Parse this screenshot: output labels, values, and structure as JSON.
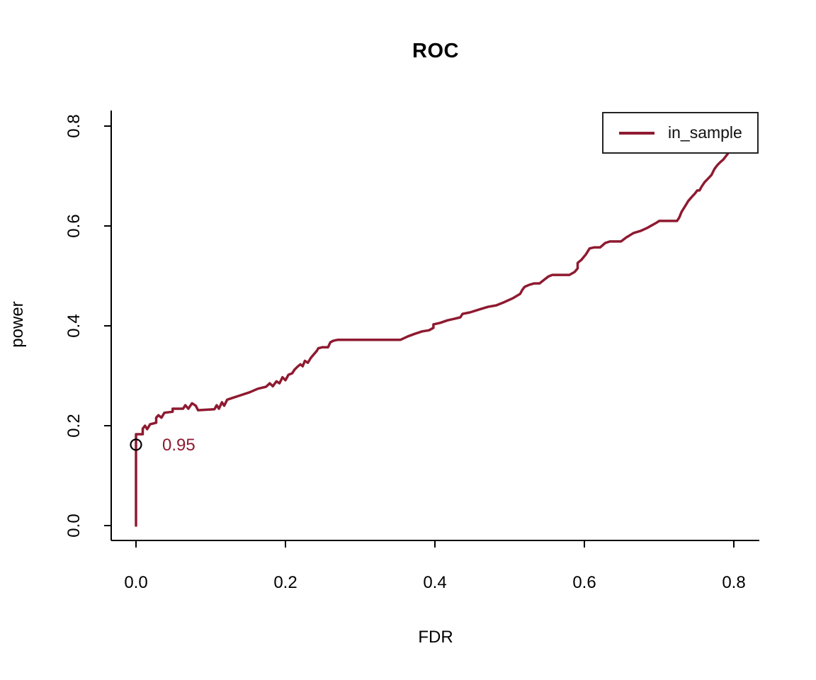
{
  "chart_data": {
    "type": "line",
    "title": "ROC",
    "xlabel": "FDR",
    "ylabel": "power",
    "xlim": [
      0,
      0.8
    ],
    "ylim": [
      0,
      0.8
    ],
    "grid": false,
    "x_ticks": [
      0.0,
      0.2,
      0.4,
      0.6,
      0.8
    ],
    "x_tick_labels": [
      "0.0",
      "0.2",
      "0.4",
      "0.6",
      "0.8"
    ],
    "y_ticks": [
      0.0,
      0.2,
      0.4,
      0.6,
      0.8
    ],
    "y_tick_labels": [
      "0.0",
      "0.2",
      "0.4",
      "0.6",
      "0.8"
    ],
    "legend_position": "top-right",
    "legend_entries": [
      {
        "label": "in_sample",
        "color": "#8E1A30"
      }
    ],
    "series": [
      {
        "name": "in_sample",
        "color": "#8E1A30",
        "points": [
          [
            0.0,
            0.0
          ],
          [
            0.0,
            0.183
          ],
          [
            0.009,
            0.183
          ],
          [
            0.009,
            0.194
          ],
          [
            0.012,
            0.2
          ],
          [
            0.015,
            0.193
          ],
          [
            0.019,
            0.203
          ],
          [
            0.027,
            0.206
          ],
          [
            0.027,
            0.216
          ],
          [
            0.03,
            0.221
          ],
          [
            0.034,
            0.216
          ],
          [
            0.038,
            0.226
          ],
          [
            0.049,
            0.228
          ],
          [
            0.049,
            0.234
          ],
          [
            0.063,
            0.234
          ],
          [
            0.066,
            0.241
          ],
          [
            0.07,
            0.234
          ],
          [
            0.075,
            0.245
          ],
          [
            0.08,
            0.24
          ],
          [
            0.083,
            0.231
          ],
          [
            0.105,
            0.233
          ],
          [
            0.108,
            0.241
          ],
          [
            0.111,
            0.234
          ],
          [
            0.115,
            0.247
          ],
          [
            0.118,
            0.24
          ],
          [
            0.122,
            0.252
          ],
          [
            0.128,
            0.255
          ],
          [
            0.14,
            0.261
          ],
          [
            0.152,
            0.267
          ],
          [
            0.163,
            0.274
          ],
          [
            0.174,
            0.278
          ],
          [
            0.179,
            0.285
          ],
          [
            0.183,
            0.279
          ],
          [
            0.188,
            0.289
          ],
          [
            0.192,
            0.285
          ],
          [
            0.196,
            0.297
          ],
          [
            0.2,
            0.291
          ],
          [
            0.204,
            0.302
          ],
          [
            0.209,
            0.305
          ],
          [
            0.212,
            0.312
          ],
          [
            0.216,
            0.318
          ],
          [
            0.22,
            0.323
          ],
          [
            0.223,
            0.319
          ],
          [
            0.226,
            0.33
          ],
          [
            0.23,
            0.326
          ],
          [
            0.234,
            0.336
          ],
          [
            0.238,
            0.343
          ],
          [
            0.242,
            0.35
          ],
          [
            0.244,
            0.355
          ],
          [
            0.249,
            0.357
          ],
          [
            0.257,
            0.357
          ],
          [
            0.26,
            0.367
          ],
          [
            0.264,
            0.37
          ],
          [
            0.27,
            0.372
          ],
          [
            0.354,
            0.372
          ],
          [
            0.364,
            0.379
          ],
          [
            0.373,
            0.384
          ],
          [
            0.383,
            0.389
          ],
          [
            0.392,
            0.391
          ],
          [
            0.398,
            0.396
          ],
          [
            0.398,
            0.403
          ],
          [
            0.407,
            0.406
          ],
          [
            0.417,
            0.411
          ],
          [
            0.426,
            0.414
          ],
          [
            0.434,
            0.417
          ],
          [
            0.437,
            0.424
          ],
          [
            0.447,
            0.427
          ],
          [
            0.46,
            0.433
          ],
          [
            0.471,
            0.438
          ],
          [
            0.482,
            0.441
          ],
          [
            0.492,
            0.447
          ],
          [
            0.504,
            0.455
          ],
          [
            0.514,
            0.464
          ],
          [
            0.517,
            0.472
          ],
          [
            0.52,
            0.478
          ],
          [
            0.526,
            0.482
          ],
          [
            0.533,
            0.485
          ],
          [
            0.54,
            0.485
          ],
          [
            0.546,
            0.492
          ],
          [
            0.552,
            0.499
          ],
          [
            0.557,
            0.502
          ],
          [
            0.58,
            0.502
          ],
          [
            0.587,
            0.508
          ],
          [
            0.591,
            0.515
          ],
          [
            0.591,
            0.526
          ],
          [
            0.596,
            0.532
          ],
          [
            0.602,
            0.543
          ],
          [
            0.607,
            0.555
          ],
          [
            0.613,
            0.557
          ],
          [
            0.621,
            0.557
          ],
          [
            0.628,
            0.566
          ],
          [
            0.634,
            0.569
          ],
          [
            0.649,
            0.569
          ],
          [
            0.656,
            0.577
          ],
          [
            0.666,
            0.586
          ],
          [
            0.675,
            0.59
          ],
          [
            0.684,
            0.596
          ],
          [
            0.697,
            0.607
          ],
          [
            0.7,
            0.61
          ],
          [
            0.724,
            0.61
          ],
          [
            0.727,
            0.617
          ],
          [
            0.73,
            0.628
          ],
          [
            0.735,
            0.64
          ],
          [
            0.739,
            0.65
          ],
          [
            0.743,
            0.657
          ],
          [
            0.748,
            0.665
          ],
          [
            0.751,
            0.671
          ],
          [
            0.754,
            0.671
          ],
          [
            0.757,
            0.679
          ],
          [
            0.761,
            0.688
          ],
          [
            0.765,
            0.694
          ],
          [
            0.77,
            0.702
          ],
          [
            0.774,
            0.714
          ],
          [
            0.778,
            0.722
          ],
          [
            0.782,
            0.728
          ],
          [
            0.786,
            0.733
          ],
          [
            0.789,
            0.739
          ],
          [
            0.792,
            0.745
          ]
        ]
      }
    ],
    "annotations": [
      {
        "type": "text",
        "text": "0.95",
        "color": "#8E1A30",
        "x": 0.055,
        "y": 0.16
      },
      {
        "type": "marker",
        "shape": "open-circle",
        "color": "#000000",
        "x": 0.0,
        "y": 0.162
      }
    ]
  }
}
